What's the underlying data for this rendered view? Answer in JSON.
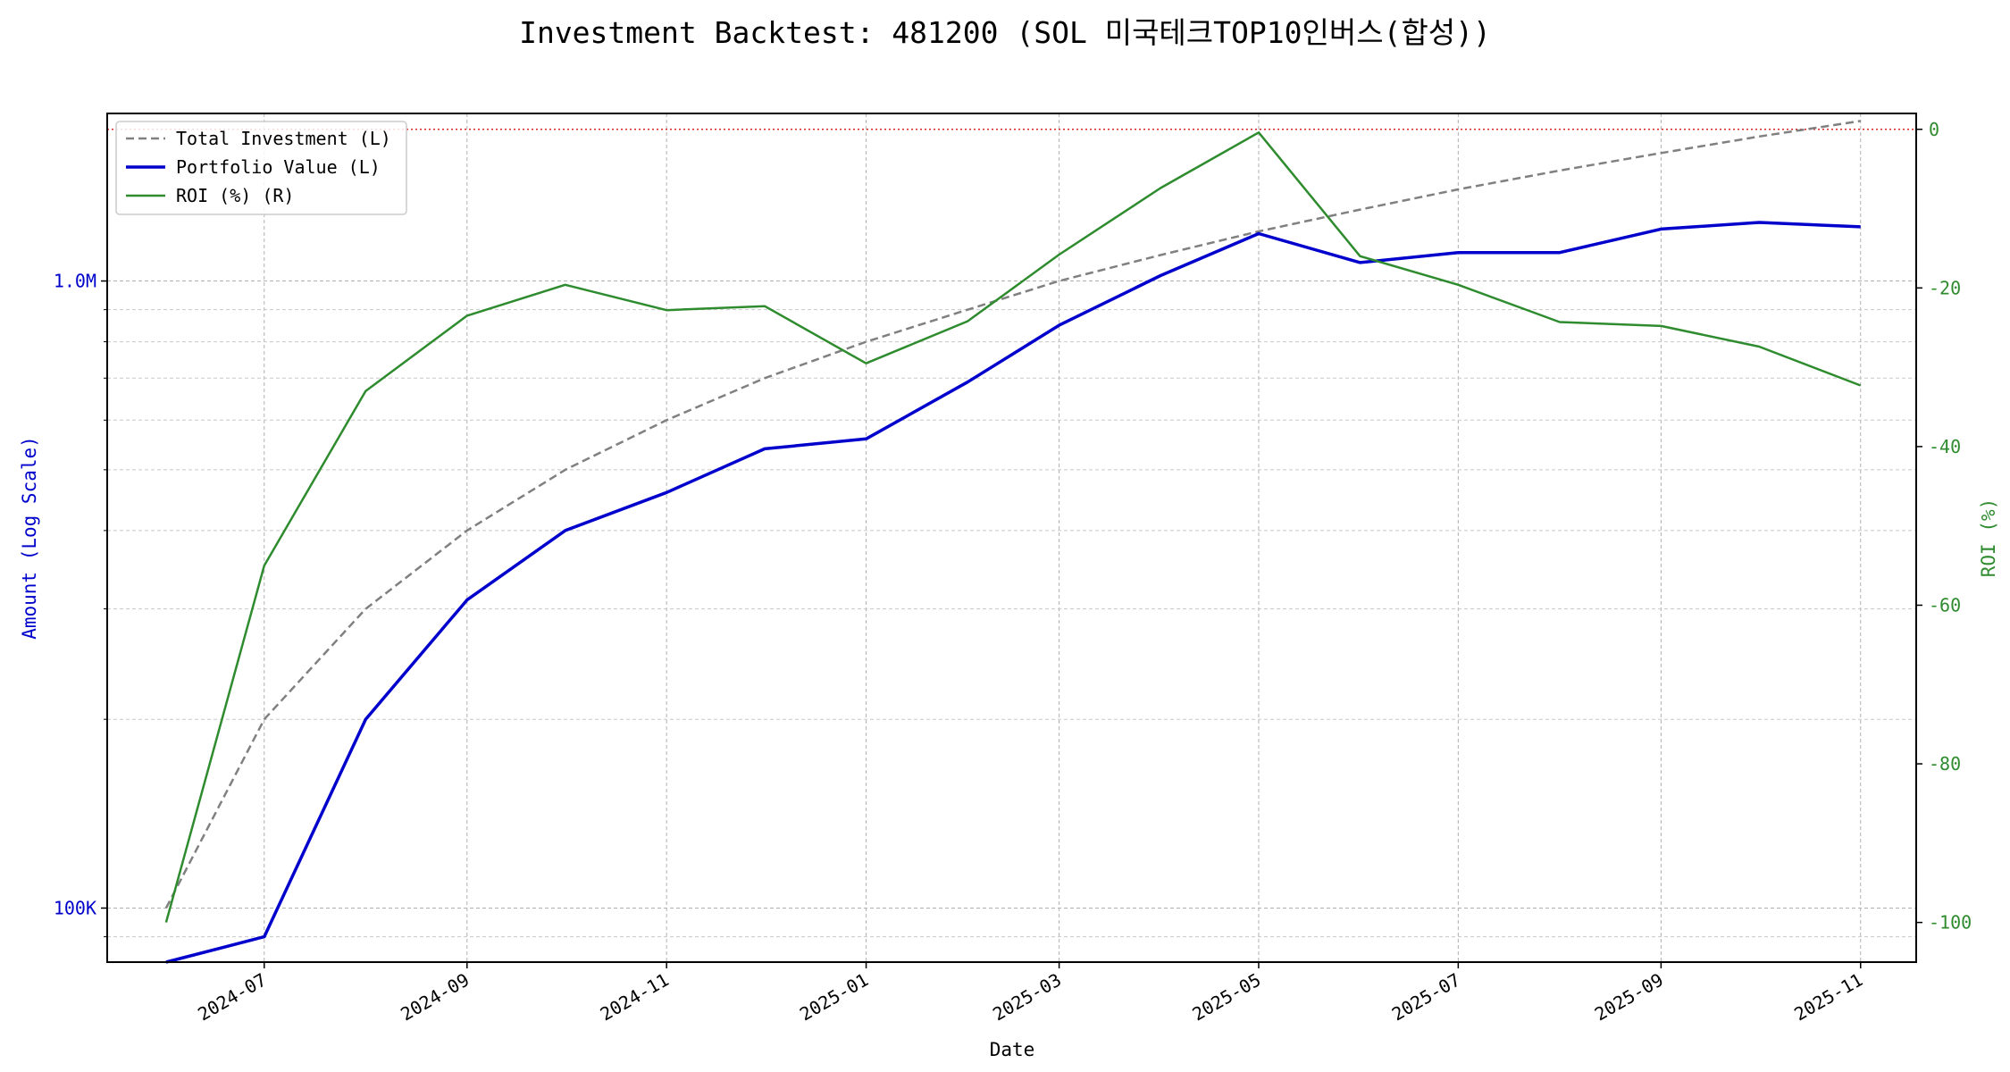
{
  "chart_data": {
    "type": "line",
    "title": "Investment Backtest: 481200 (SOL 미국테크TOP10인버스(합성))",
    "xlabel": "Date",
    "ylabel_left": "Amount (Log Scale)",
    "ylabel_right": "ROI (%)",
    "left_scale": "log",
    "left_ylim": [
      82000,
      1850000
    ],
    "right_ylim": [
      -105,
      2
    ],
    "x_range": [
      "2024-05-14",
      "2025-11-18"
    ],
    "x_ticks": [
      "2024-07",
      "2024-09",
      "2024-11",
      "2025-01",
      "2025-03",
      "2025-05",
      "2025-07",
      "2025-09",
      "2025-11"
    ],
    "x_tick_dates": [
      "2024-07-01",
      "2024-09-01",
      "2024-11-01",
      "2025-01-01",
      "2025-03-01",
      "2025-05-01",
      "2025-07-01",
      "2025-09-01",
      "2025-11-01"
    ],
    "left_ticks": [
      {
        "value": 100000,
        "label": "100K"
      },
      {
        "value": 1000000,
        "label": "1.0M"
      }
    ],
    "left_minor_ticks": [
      90000,
      200000,
      300000,
      400000,
      500000,
      600000,
      700000,
      800000,
      900000
    ],
    "right_ticks": [
      0,
      -20,
      -40,
      -60,
      -80,
      -100
    ],
    "reference_line": {
      "axis": "right",
      "value": 0,
      "color": "#d62728"
    },
    "grid": true,
    "legend_position": "top-left",
    "legend": [
      "Total Investment (L)",
      "Portfolio Value (L)",
      "ROI (%) (R)"
    ],
    "dates": [
      "2024-06-01",
      "2024-07-01",
      "2024-08-01",
      "2024-09-01",
      "2024-10-01",
      "2024-11-01",
      "2024-12-01",
      "2025-01-01",
      "2025-02-01",
      "2025-03-01",
      "2025-04-01",
      "2025-05-01",
      "2025-06-01",
      "2025-07-01",
      "2025-08-01",
      "2025-09-01",
      "2025-10-01",
      "2025-11-01"
    ],
    "series": [
      {
        "name": "Total Investment (L)",
        "axis": "left",
        "color": "#808080",
        "dash": "dashed",
        "values": [
          100000,
          200000,
          300000,
          400000,
          500000,
          600000,
          700000,
          800000,
          900000,
          1000000,
          1100000,
          1200000,
          1300000,
          1400000,
          1500000,
          1600000,
          1700000,
          1800000
        ]
      },
      {
        "name": "Portfolio Value (L)",
        "axis": "left",
        "color": "#0000cc",
        "dash": "solid",
        "values": [
          0,
          90000,
          200000,
          310000,
          400000,
          460000,
          540000,
          560000,
          690000,
          850000,
          1020000,
          1190000,
          1070000,
          1110000,
          1110000,
          1210000,
          1240000,
          1220000
        ]
      },
      {
        "name": "ROI (%) (R)",
        "axis": "right",
        "color": "#2e8b2e",
        "dash": "solid",
        "values": [
          -100,
          -55,
          -33,
          -23.5,
          -19.6,
          -22.8,
          -22.3,
          -29.5,
          -24.2,
          -15.8,
          -7.4,
          -0.4,
          -16,
          -19.6,
          -24.3,
          -24.8,
          -27.4,
          -32.3
        ]
      }
    ]
  }
}
